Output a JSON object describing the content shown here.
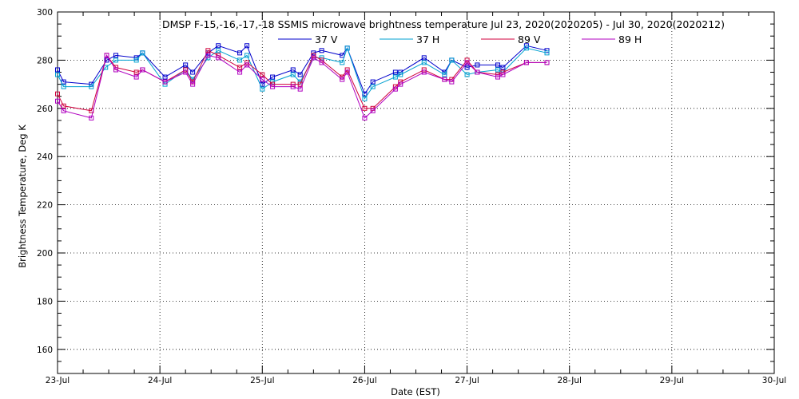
{
  "chart_data": {
    "type": "line",
    "title": "DMSP F-15,-16,-17,-18 SSMIS microwave brightness temperature Jul 23, 2020(2020205) - Jul 30, 2020(2020212)",
    "xlabel": "Date (EST)",
    "ylabel": "Brightness Temperature, Deg K",
    "xlim": [
      "2020-07-23",
      "2020-07-30"
    ],
    "ylim": [
      150,
      300
    ],
    "x_ticks": [
      "23-Jul",
      "24-Jul",
      "25-Jul",
      "26-Jul",
      "27-Jul",
      "28-Jul",
      "29-Jul",
      "30-Jul"
    ],
    "y_ticks": [
      160,
      180,
      200,
      220,
      240,
      260,
      280,
      300
    ],
    "grid": true,
    "legend_position": "top",
    "series": [
      {
        "name": "37 V",
        "color": "#0000cc",
        "points": [
          [
            0.0,
            276
          ],
          [
            0.06,
            271
          ],
          [
            0.33,
            270
          ],
          [
            0.48,
            280
          ],
          [
            0.57,
            282
          ],
          [
            0.77,
            281
          ],
          [
            0.83,
            283
          ],
          [
            1.05,
            273
          ],
          [
            1.25,
            278
          ],
          [
            1.32,
            275
          ],
          [
            1.47,
            283
          ],
          [
            1.57,
            286
          ],
          [
            1.78,
            283
          ],
          [
            1.85,
            286
          ],
          [
            2.0,
            270
          ],
          [
            2.1,
            273
          ],
          [
            2.3,
            276
          ],
          [
            2.37,
            274
          ],
          [
            2.5,
            283
          ],
          [
            2.58,
            284
          ],
          [
            2.78,
            282
          ],
          [
            2.83,
            285
          ],
          [
            3.0,
            266
          ],
          [
            3.08,
            271
          ],
          [
            3.3,
            275
          ],
          [
            3.35,
            275
          ],
          [
            3.58,
            281
          ],
          [
            3.78,
            275
          ],
          [
            3.85,
            280
          ],
          [
            4.0,
            277
          ],
          [
            4.1,
            278
          ],
          [
            4.3,
            278
          ],
          [
            4.35,
            277
          ],
          [
            4.58,
            286
          ],
          [
            4.78,
            284
          ]
        ]
      },
      {
        "name": "37 H",
        "color": "#00a0d0",
        "points": [
          [
            0.0,
            274
          ],
          [
            0.06,
            269
          ],
          [
            0.33,
            269
          ],
          [
            0.47,
            277
          ],
          [
            0.57,
            280
          ],
          [
            0.77,
            280
          ],
          [
            0.83,
            283
          ],
          [
            1.05,
            270
          ],
          [
            1.25,
            276
          ],
          [
            1.32,
            272
          ],
          [
            1.47,
            281
          ],
          [
            1.57,
            284
          ],
          [
            1.78,
            280
          ],
          [
            1.85,
            282
          ],
          [
            2.0,
            268
          ],
          [
            2.1,
            271
          ],
          [
            2.3,
            274
          ],
          [
            2.37,
            271
          ],
          [
            2.5,
            281
          ],
          [
            2.58,
            281
          ],
          [
            2.78,
            279
          ],
          [
            2.83,
            285
          ],
          [
            3.0,
            264
          ],
          [
            3.08,
            269
          ],
          [
            3.3,
            273
          ],
          [
            3.35,
            274
          ],
          [
            3.58,
            279
          ],
          [
            3.78,
            274
          ],
          [
            3.85,
            280
          ],
          [
            4.0,
            274
          ],
          [
            4.1,
            275
          ],
          [
            4.3,
            276
          ],
          [
            4.35,
            275
          ],
          [
            4.58,
            285
          ],
          [
            4.78,
            283
          ]
        ]
      },
      {
        "name": "89 V",
        "color": "#d0003c",
        "points": [
          [
            0.0,
            266
          ],
          [
            0.06,
            261
          ],
          [
            0.33,
            259
          ],
          [
            0.48,
            282
          ],
          [
            0.57,
            277
          ],
          [
            0.77,
            275
          ],
          [
            0.83,
            276
          ],
          [
            1.05,
            271
          ],
          [
            1.25,
            276
          ],
          [
            1.32,
            271
          ],
          [
            1.47,
            284
          ],
          [
            1.57,
            282
          ],
          [
            1.78,
            277
          ],
          [
            1.85,
            279
          ],
          [
            2.0,
            274
          ],
          [
            2.1,
            270
          ],
          [
            2.3,
            270
          ],
          [
            2.37,
            270
          ],
          [
            2.5,
            282
          ],
          [
            2.58,
            280
          ],
          [
            2.78,
            273
          ],
          [
            2.83,
            276
          ],
          [
            3.0,
            260
          ],
          [
            3.08,
            260
          ],
          [
            3.3,
            269
          ],
          [
            3.35,
            271
          ],
          [
            3.58,
            276
          ],
          [
            3.78,
            272
          ],
          [
            3.85,
            272
          ],
          [
            4.0,
            280
          ],
          [
            4.1,
            275
          ],
          [
            4.3,
            274
          ],
          [
            4.35,
            275
          ],
          [
            4.58,
            279
          ],
          [
            4.78,
            279
          ]
        ]
      },
      {
        "name": "89 H",
        "color": "#b000c0",
        "points": [
          [
            0.0,
            263
          ],
          [
            0.06,
            259
          ],
          [
            0.33,
            256
          ],
          [
            0.48,
            282
          ],
          [
            0.57,
            276
          ],
          [
            0.77,
            273
          ],
          [
            0.83,
            276
          ],
          [
            1.05,
            271
          ],
          [
            1.25,
            275
          ],
          [
            1.32,
            270
          ],
          [
            1.47,
            282
          ],
          [
            1.57,
            281
          ],
          [
            1.78,
            275
          ],
          [
            1.85,
            278
          ],
          [
            2.0,
            272
          ],
          [
            2.1,
            269
          ],
          [
            2.3,
            269
          ],
          [
            2.37,
            268
          ],
          [
            2.5,
            281
          ],
          [
            2.58,
            279
          ],
          [
            2.78,
            272
          ],
          [
            2.83,
            275
          ],
          [
            3.0,
            256
          ],
          [
            3.08,
            259
          ],
          [
            3.3,
            268
          ],
          [
            3.35,
            270
          ],
          [
            3.58,
            275
          ],
          [
            3.78,
            272
          ],
          [
            3.85,
            271
          ],
          [
            4.0,
            279
          ],
          [
            4.1,
            275
          ],
          [
            4.3,
            273
          ],
          [
            4.35,
            274
          ],
          [
            4.58,
            279
          ],
          [
            4.78,
            279
          ]
        ]
      }
    ]
  }
}
